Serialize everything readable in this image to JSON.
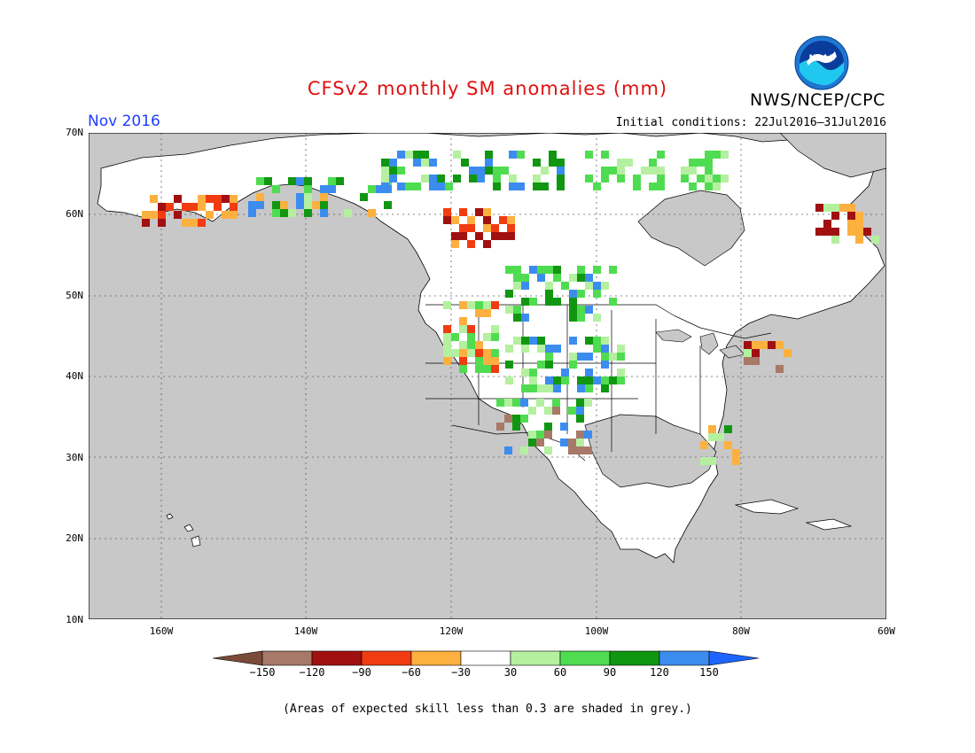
{
  "title": "CFSv2 monthly SM anomalies (mm)",
  "agency": "NWS/NCEP/CPC",
  "period": "Nov 2016",
  "initial_conditions": "Initial conditions: 22Jul2016–31Jul2016",
  "logo_text": "NOAA",
  "lat_labels": [
    "70N",
    "60N",
    "50N",
    "40N",
    "30N",
    "20N",
    "10N"
  ],
  "lon_labels": [
    "160W",
    "140W",
    "120W",
    "100W",
    "80W",
    "60W"
  ],
  "colorbar": {
    "ticks": [
      "−150",
      "−120",
      "−90",
      "−60",
      "−30",
      "30",
      "60",
      "90",
      "120",
      "150"
    ],
    "colors": [
      "#7a4a3a",
      "#a87868",
      "#a01010",
      "#f03c10",
      "#fcb040",
      "#ffffff",
      "#b4f0a0",
      "#50dc50",
      "#119611",
      "#3c8cf0",
      "#1e64ff"
    ]
  },
  "skill_mask_color": "#c8c8c8",
  "land_color": "#ffffff",
  "footnote": "(Areas of expected skill less than 0.3 are shaded in grey.)"
}
